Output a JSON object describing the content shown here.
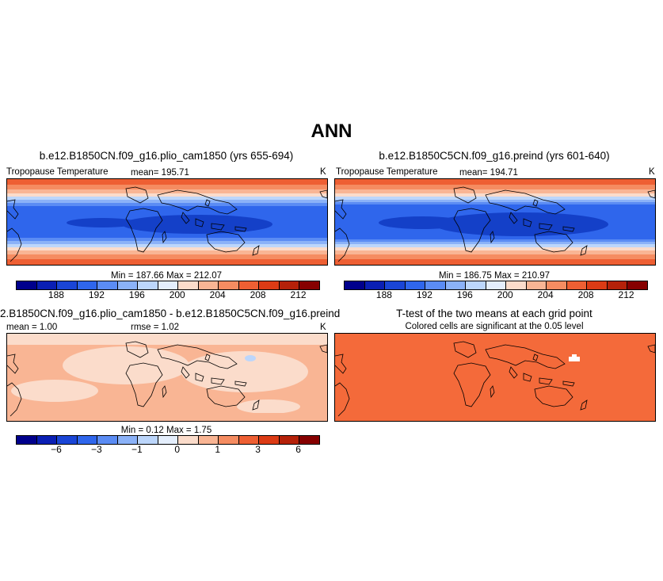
{
  "title": "ANN",
  "panels": {
    "p1": {
      "title": "b.e12.B1850CN.f09_g16.plio_cam1850 (yrs 655-694)",
      "variable": "Tropopause Temperature",
      "mean": "mean= 195.71",
      "units": "K",
      "minmax": "Min = 187.66 Max = 212.07"
    },
    "p2": {
      "title": "b.e12.B1850C5CN.f09_g16.preind (yrs 601-640)",
      "variable": "Tropopause Temperature",
      "mean": "mean= 194.71",
      "units": "K",
      "minmax": "Min = 186.75 Max = 210.97"
    },
    "p3": {
      "title": "2.B1850CN.f09_g16.plio_cam1850 - b.e12.B1850C5CN.f09_g16.preind",
      "mean": "mean =  1.00",
      "rmse": "rmse =  1.02",
      "units": "K",
      "minmax": "Min =  0.12 Max =  1.75"
    },
    "p4": {
      "title": "T-test of the two means at each grid point",
      "subtitle": "Colored cells are significant at the 0.05 level"
    }
  },
  "colorbars": {
    "absolute": {
      "colors": [
        "#00008c",
        "#0a1fb4",
        "#1a45d6",
        "#2f66ec",
        "#5b8cf4",
        "#8bb2f8",
        "#bcd6fb",
        "#e4eefc",
        "#fbdccb",
        "#f9b594",
        "#f58c61",
        "#ee5f33",
        "#dc3b15",
        "#b52109",
        "#860000"
      ],
      "ticks": [
        "188",
        "192",
        "196",
        "200",
        "204",
        "208",
        "212"
      ]
    },
    "difference": {
      "colors": [
        "#00008c",
        "#0a1fb4",
        "#1a45d6",
        "#2f66ec",
        "#5b8cf4",
        "#8bb2f8",
        "#bcd6fb",
        "#e4eefc",
        "#fbdccb",
        "#f9b594",
        "#f58c61",
        "#ee5f33",
        "#dc3b15",
        "#b52109",
        "#860000"
      ],
      "ticks": [
        "−6",
        "−3",
        "−1",
        "0",
        "1",
        "3",
        "6"
      ]
    }
  },
  "map_colors": {
    "deep_blue": "#1440c8",
    "blue": "#2f66ec",
    "mid_blue": "#5b8cf4",
    "light_blue": "#8bb2f8",
    "pale_blue": "#bcd6fb",
    "pale_orange": "#fbdccb",
    "light_orange": "#f9b594",
    "orange": "#f58c61",
    "red_orange": "#ee5f33",
    "ttest_orange": "#f46a3a"
  }
}
